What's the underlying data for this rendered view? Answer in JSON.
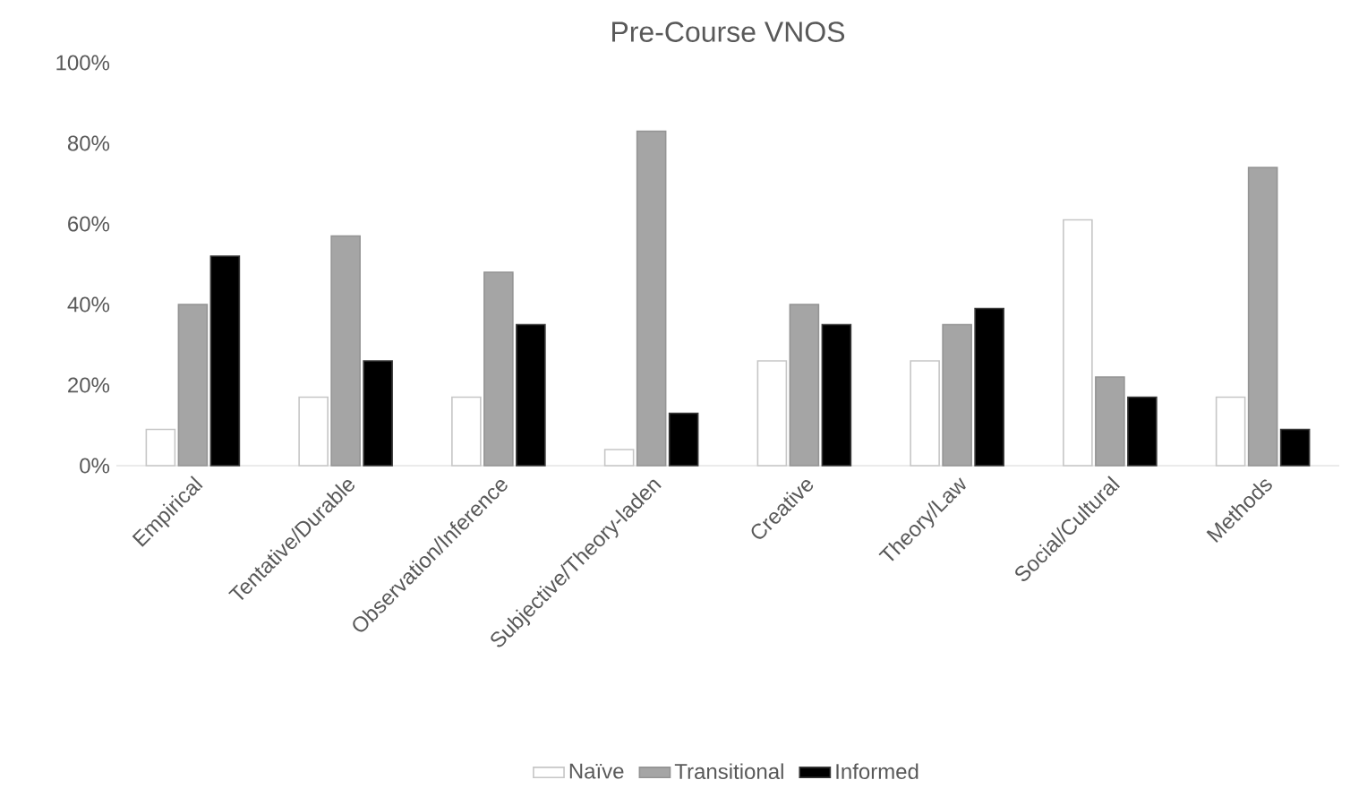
{
  "chart_data": {
    "type": "bar",
    "title": "Pre-Course VNOS",
    "categories": [
      "Empirical",
      "Tentative/Durable",
      "Observation/Inference",
      "Subjective/Theory-laden",
      "Creative",
      "Theory/Law",
      "Social/Cultural",
      "Methods"
    ],
    "series": [
      {
        "name": "Naïve",
        "color": "#ffffff",
        "values": [
          9,
          17,
          17,
          4,
          26,
          26,
          61,
          17
        ]
      },
      {
        "name": "Transitional",
        "color": "#a5a5a5",
        "values": [
          40,
          57,
          48,
          83,
          40,
          35,
          22,
          74
        ]
      },
      {
        "name": "Informed",
        "color": "#000000",
        "values": [
          52,
          26,
          35,
          13,
          35,
          39,
          17,
          9
        ]
      }
    ],
    "ylim": [
      0,
      100
    ],
    "yticks": [
      {
        "value": 0,
        "label": "0%"
      },
      {
        "value": 20,
        "label": "20%"
      },
      {
        "value": 40,
        "label": "40%"
      },
      {
        "value": 60,
        "label": "60%"
      },
      {
        "value": 80,
        "label": "80%"
      },
      {
        "value": 100,
        "label": "100%"
      }
    ],
    "legend": "bottom"
  }
}
